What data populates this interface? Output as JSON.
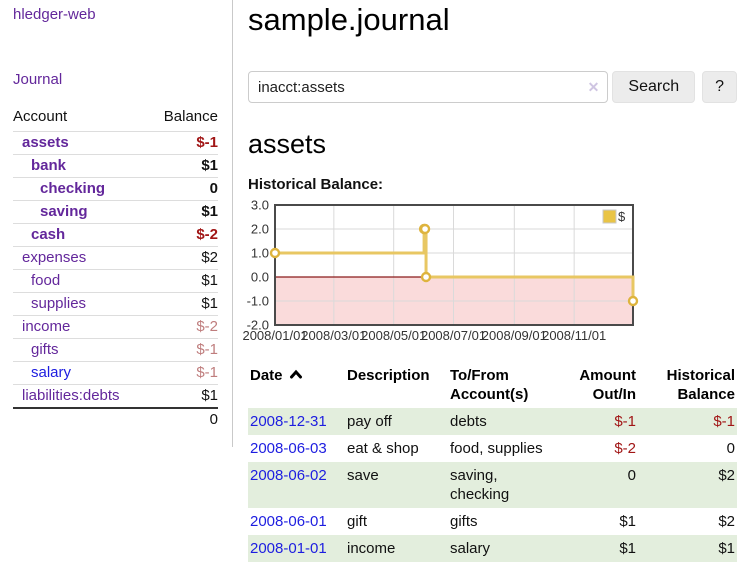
{
  "colors": {
    "purple": "#63279b",
    "blue": "#1d1de0",
    "neg": "#a11616",
    "neg-soft": "#bf7d7d",
    "row-green": "#e3eedd",
    "divider": "#c9c9c9",
    "gold": "#e8c763"
  },
  "sidebar": {
    "brand": "hledger-web",
    "nav": [
      {
        "label": "Journal"
      }
    ],
    "table": {
      "header": {
        "account": "Account",
        "balance": "Balance"
      },
      "accounts": [
        {
          "label": "assets",
          "balance": "$-1",
          "depth": 1,
          "bold": true,
          "link": "purple",
          "bal": "neg-strong"
        },
        {
          "label": "bank",
          "balance": "$1",
          "depth": 2,
          "bold": true,
          "link": "purple",
          "bal": "plain-bold"
        },
        {
          "label": "checking",
          "balance": "0",
          "depth": 3,
          "bold": true,
          "link": "purple",
          "bal": "plain-bold"
        },
        {
          "label": "saving",
          "balance": "$1",
          "depth": 3,
          "bold": true,
          "link": "purple",
          "bal": "plain-bold"
        },
        {
          "label": "cash",
          "balance": "$-2",
          "depth": 2,
          "bold": true,
          "link": "purple",
          "bal": "neg-strong"
        },
        {
          "label": "expenses",
          "balance": "$2",
          "depth": 1,
          "bold": false,
          "link": "purple",
          "bal": "plain"
        },
        {
          "label": "food",
          "balance": "$1",
          "depth": 2,
          "bold": false,
          "link": "purple",
          "bal": "plain"
        },
        {
          "label": "supplies",
          "balance": "$1",
          "depth": 2,
          "bold": false,
          "link": "purple",
          "bal": "plain"
        },
        {
          "label": "income",
          "balance": "$-2",
          "depth": 1,
          "bold": false,
          "link": "purple",
          "bal": "neg-soft"
        },
        {
          "label": "gifts",
          "balance": "$-1",
          "depth": 2,
          "bold": false,
          "link": "purple",
          "bal": "neg-soft"
        },
        {
          "label": "salary",
          "balance": "$-1",
          "depth": 2,
          "bold": false,
          "link": "blue",
          "bal": "neg-soft"
        },
        {
          "label": "liabilities:debts",
          "balance": "$1",
          "depth": 1,
          "bold": false,
          "link": "purple",
          "bal": "plain"
        }
      ],
      "total": "0"
    }
  },
  "main": {
    "title": "sample.journal",
    "search": {
      "value": "inacct:assets",
      "clear_icon": "✕",
      "search_button": "Search",
      "help_button": "?"
    },
    "account_heading": "assets",
    "section_label": "Historical Balance:"
  },
  "chart_data": {
    "type": "line",
    "step": true,
    "title": "Historical Balance:",
    "series": [
      {
        "name": "$",
        "color": "#e8c763",
        "marker_color": "#deb43e",
        "x": [
          "2008-01-01",
          "2008-06-01",
          "2008-06-02",
          "2008-06-03",
          "2008-12-31"
        ],
        "values": [
          1,
          2,
          2,
          0,
          -1
        ]
      }
    ],
    "xlim": [
      "2008-01-01",
      "2008-12-31"
    ],
    "ylim": [
      -2,
      3
    ],
    "yticks": [
      3,
      2,
      1,
      0,
      -1,
      -2
    ],
    "ytick_labels": [
      "3.0",
      "2.0",
      "1.0",
      "0.0",
      "-1.0",
      "-2.0"
    ],
    "xticks": [
      {
        "date": "2008-01-01",
        "label": "2008/01/01"
      },
      {
        "date": "2008-03-01",
        "label": "2008/03/01"
      },
      {
        "date": "2008-05-01",
        "label": "2008/05/01"
      },
      {
        "date": "2008-07-01",
        "label": "2008/07/01"
      },
      {
        "date": "2008-09-01",
        "label": "2008/09/01"
      },
      {
        "date": "2008-11-01",
        "label": "2008/11/01"
      }
    ],
    "legend": {
      "label": "$",
      "position": "top-right",
      "swatch_color": "#e9c445"
    },
    "grid": true,
    "negative_region_color": "#fadbdb",
    "zero_line_color": "#8b1a1a"
  },
  "register": {
    "columns": {
      "date": "Date",
      "sort": "ascending",
      "description": "Description",
      "tofrom_line1": "To/From",
      "tofrom_line2": "Account(s)",
      "amount_line1": "Amount",
      "amount_line2": "Out/In",
      "balance_line1": "Historical",
      "balance_line2": "Balance"
    },
    "rows": [
      {
        "date": "2008-12-31",
        "description": "pay off",
        "accounts": "debts",
        "amount": "$-1",
        "amount_negative": true,
        "balance": "$-1",
        "balance_negative": true
      },
      {
        "date": "2008-06-03",
        "description": "eat & shop",
        "accounts": "food, supplies",
        "amount": "$-2",
        "amount_negative": true,
        "balance": "0",
        "balance_negative": false
      },
      {
        "date": "2008-06-02",
        "description": "save",
        "accounts": "saving, checking",
        "amount": "0",
        "amount_negative": false,
        "balance": "$2",
        "balance_negative": false
      },
      {
        "date": "2008-06-01",
        "description": "gift",
        "accounts": "gifts",
        "amount": "$1",
        "amount_negative": false,
        "balance": "$2",
        "balance_negative": false
      },
      {
        "date": "2008-01-01",
        "description": "income",
        "accounts": "salary",
        "amount": "$1",
        "amount_negative": false,
        "balance": "$1",
        "balance_negative": false
      }
    ]
  }
}
